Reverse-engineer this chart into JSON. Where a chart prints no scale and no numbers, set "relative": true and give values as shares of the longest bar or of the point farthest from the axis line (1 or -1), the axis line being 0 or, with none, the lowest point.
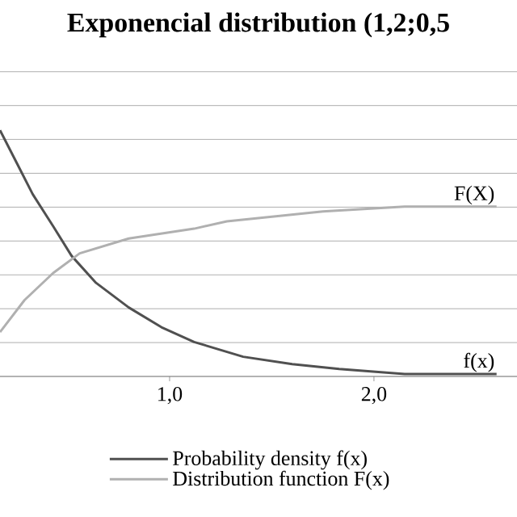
{
  "chart_data": {
    "type": "line",
    "title": "Exponencial distribution (1,2;0,5",
    "relative": true,
    "xlim": [
      0.17,
      2.7
    ],
    "xticks": [
      {
        "value": 1,
        "label": "1,0"
      },
      {
        "value": 2,
        "label": "2,0"
      }
    ],
    "grid": "y",
    "legend": "bottom",
    "tick_labels": "x",
    "series": [
      {
        "name": "Probability density f(x)",
        "color": "#505050",
        "x": [
          0.17,
          0.25,
          0.33,
          0.43,
          0.52,
          0.64,
          0.8,
          0.96,
          1.12,
          1.36,
          1.6,
          1.83,
          2.15,
          2.6
        ],
        "values": [
          1.0,
          0.87,
          0.74,
          0.61,
          0.49,
          0.38,
          0.28,
          0.2,
          0.14,
          0.08,
          0.05,
          0.03,
          0.01,
          0.01
        ]
      },
      {
        "name": "Distribution function F(x)",
        "color": "#b0b0b0",
        "x": [
          0.17,
          0.29,
          0.43,
          0.56,
          0.8,
          1.12,
          1.28,
          1.52,
          1.75,
          2.15,
          2.6
        ],
        "values": [
          0.18,
          0.31,
          0.42,
          0.5,
          0.56,
          0.6,
          0.63,
          0.65,
          0.67,
          0.69,
          0.69
        ]
      }
    ],
    "annotations": [
      {
        "text": "F(X)",
        "x": 2.6,
        "y": 0.69
      },
      {
        "text": "f(x)",
        "x": 2.6,
        "y": 0.01
      }
    ]
  }
}
